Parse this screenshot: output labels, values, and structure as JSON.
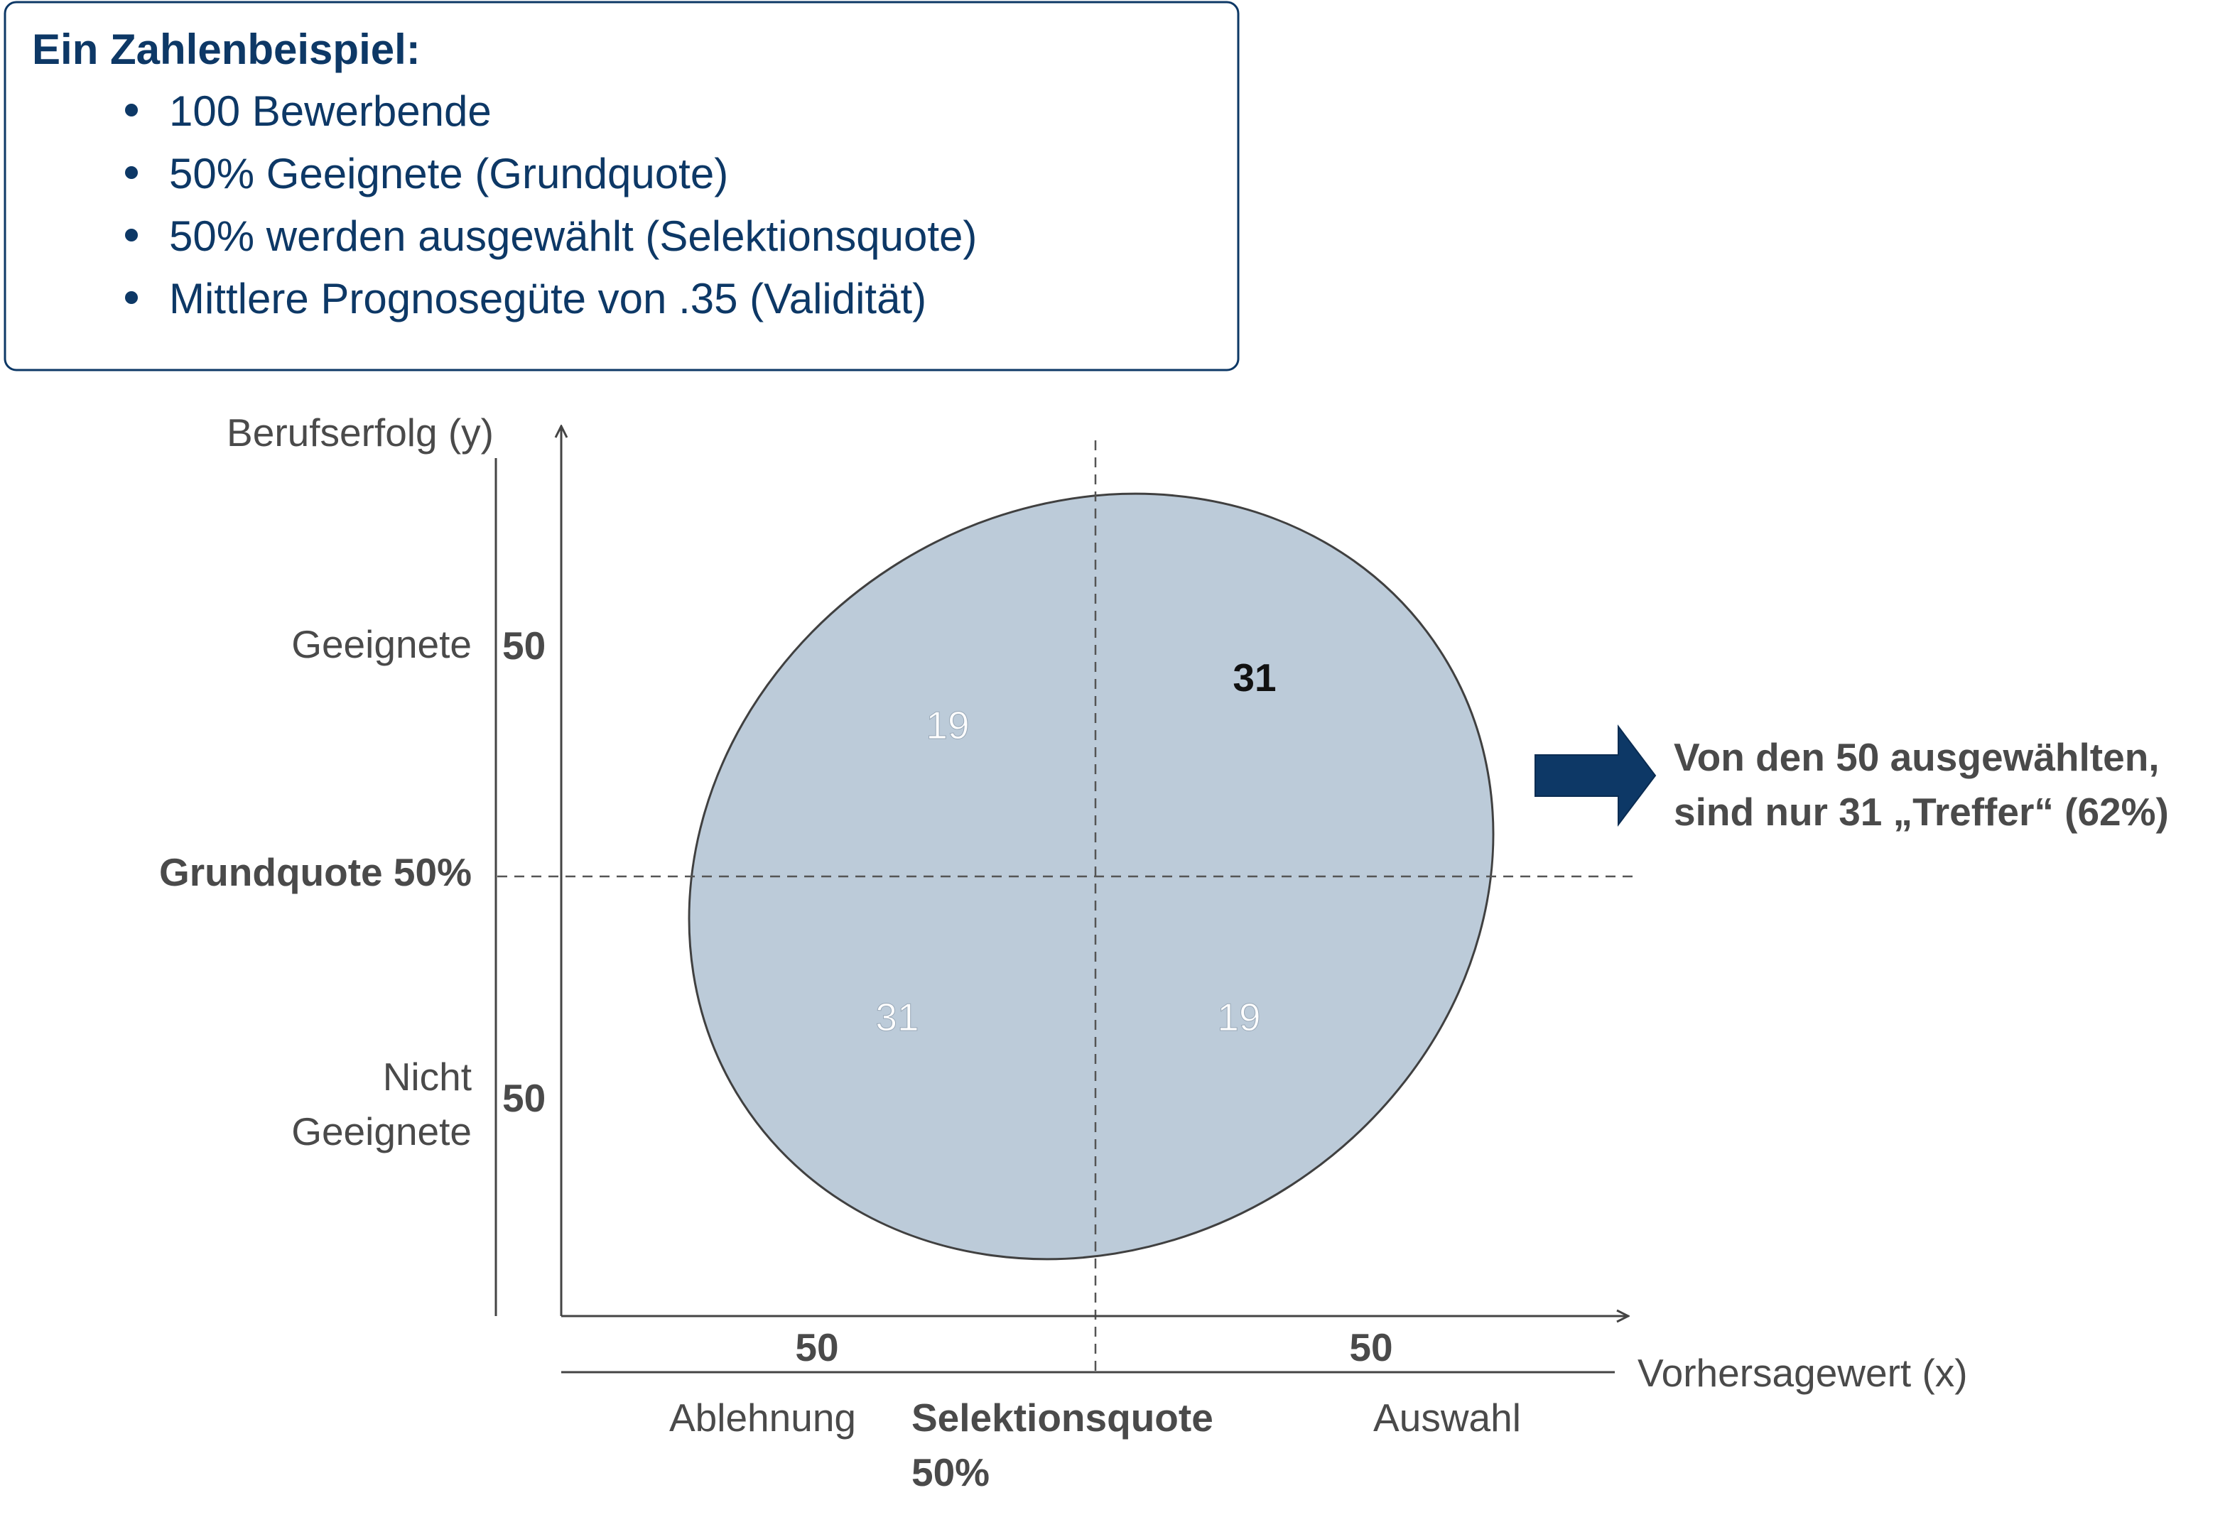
{
  "info_box": {
    "title": "Ein Zahlenbeispiel:",
    "bullets": [
      "100 Bewerbende",
      "50% Geeignete (Grundquote)",
      "50% werden ausgewählt (Selektionsquote)",
      "Mittlere Prognosegüte von .35 (Validität)"
    ]
  },
  "y_axis": {
    "label": "Berufserfolg (y)",
    "top_group": "Geeignete",
    "top_count": "50",
    "bottom_group_line1": "Nicht",
    "bottom_group_line2": "Geeignete",
    "bottom_count": "50",
    "cutoff_label": "Grundquote 50%"
  },
  "x_axis": {
    "label": "Vorhersagewert (x)",
    "left_count": "50",
    "right_count": "50",
    "left_group": "Ablehnung",
    "right_group": "Auswahl",
    "cutoff_label_line1": "Selektionsquote",
    "cutoff_label_line2": "50%"
  },
  "quadrants": {
    "top_left": "19",
    "top_right": "31",
    "bottom_left": "31",
    "bottom_right": "19"
  },
  "callout": {
    "line1": "Von den 50 ausgewählten,",
    "line2": "sind nur 31 „Treffer“ (62%)"
  },
  "colors": {
    "navy": "#0d3866",
    "ellipse_fill": "#bccbd9",
    "text_gray": "#4a4a4a"
  }
}
